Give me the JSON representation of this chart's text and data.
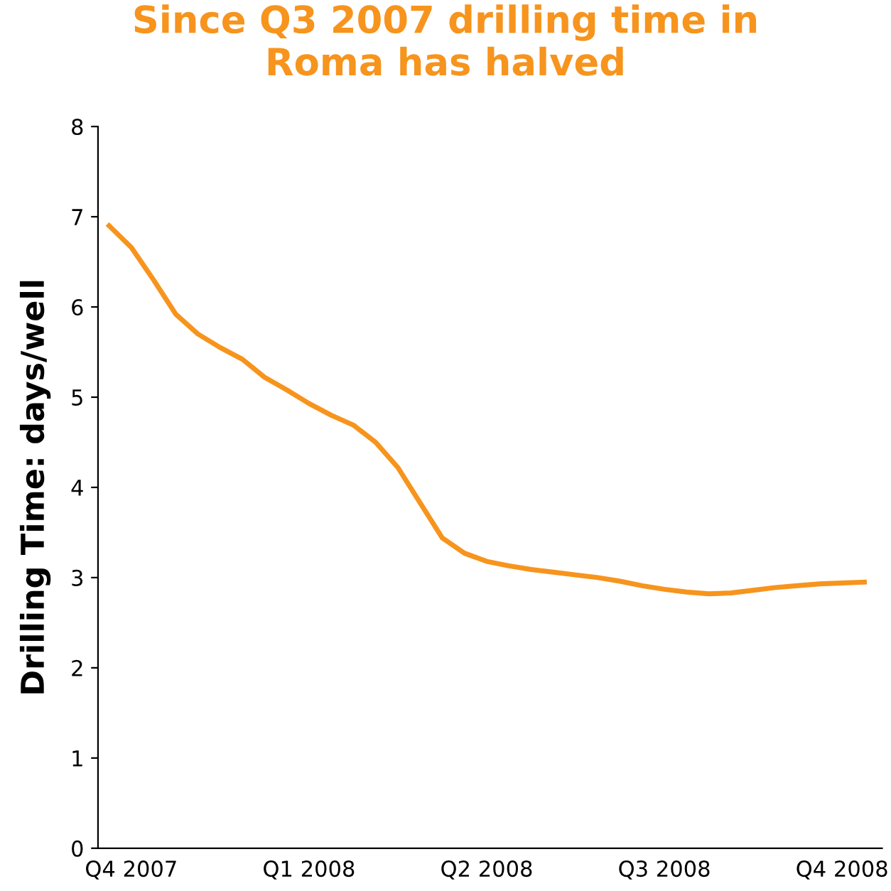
{
  "chart_data": {
    "type": "line",
    "title": "Since Q3 2007 drilling time in\nRoma has halved",
    "ylabel": "Drilling Time: days/well",
    "categories": [
      null,
      "Q4 2007",
      null,
      null,
      null,
      null,
      null,
      null,
      null,
      "Q1 2008",
      null,
      null,
      null,
      null,
      null,
      null,
      null,
      "Q2 2008",
      null,
      null,
      null,
      null,
      null,
      null,
      null,
      "Q3 2008",
      null,
      null,
      null,
      null,
      null,
      null,
      null,
      "Q4 2008",
      null
    ],
    "series": [
      {
        "color": "#f7941d",
        "values": [
          6.9,
          6.66,
          6.3,
          5.92,
          5.7,
          5.55,
          5.42,
          5.22,
          5.08,
          4.93,
          4.8,
          4.69,
          4.5,
          4.22,
          3.83,
          3.44,
          3.27,
          3.18,
          3.13,
          3.09,
          3.06,
          3.03,
          3.0,
          2.96,
          2.91,
          2.87,
          2.84,
          2.82,
          2.83,
          2.86,
          2.89,
          2.91,
          2.93,
          2.94,
          2.95
        ]
      }
    ],
    "ylim": [
      0,
      8
    ],
    "yticks": [
      0,
      1,
      2,
      3,
      4,
      5,
      6,
      7,
      8
    ],
    "grid": false,
    "legend": false,
    "marker": "none",
    "line_style": "solid"
  }
}
